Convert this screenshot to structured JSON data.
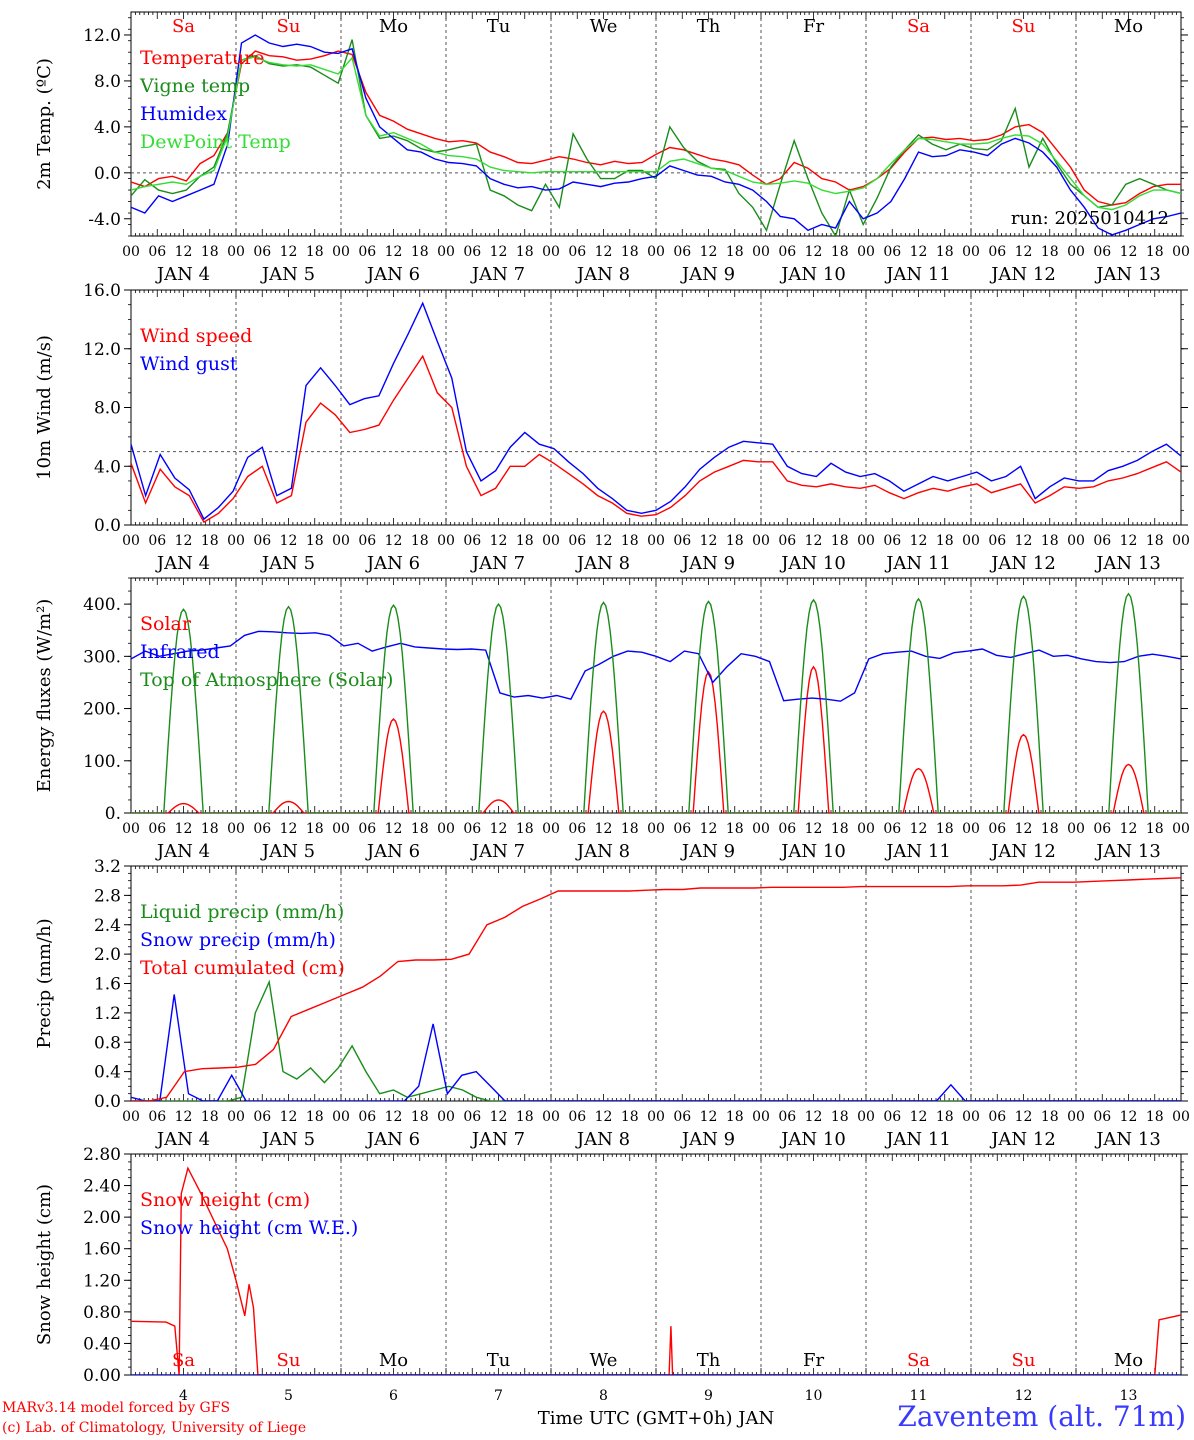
{
  "footer": {
    "model": "MARv3.14 model forced by GFS",
    "copyright": "(c) Lab. of Climatology, University of Liege",
    "station": "Zaventem (alt. 71m)"
  },
  "colors": {
    "red": "#ff0000",
    "green": "#1a8c1a",
    "blue": "#0000ff",
    "lime": "#33dd33",
    "weekend": "#ff0000",
    "weekday": "#000000"
  },
  "hour_ticks": [
    "00",
    "06",
    "12",
    "18"
  ],
  "days": [
    {
      "dow": "Sa",
      "date": "JAN  4",
      "num": "4",
      "weekend": true
    },
    {
      "dow": "Su",
      "date": "JAN  5",
      "num": "5",
      "weekend": true
    },
    {
      "dow": "Mo",
      "date": "JAN  6",
      "num": "6",
      "weekend": false
    },
    {
      "dow": "Tu",
      "date": "JAN  7",
      "num": "7",
      "weekend": false
    },
    {
      "dow": "We",
      "date": "JAN  8",
      "num": "8",
      "weekend": false
    },
    {
      "dow": "Th",
      "date": "JAN  9",
      "num": "9",
      "weekend": false
    },
    {
      "dow": "Fr",
      "date": "JAN 10",
      "num": "10",
      "weekend": false
    },
    {
      "dow": "Sa",
      "date": "JAN 11",
      "num": "11",
      "weekend": true
    },
    {
      "dow": "Su",
      "date": "JAN 12",
      "num": "12",
      "weekend": true
    },
    {
      "dow": "Mo",
      "date": "JAN 13",
      "num": "13",
      "weekend": false
    }
  ],
  "chart_data": [
    {
      "type": "line",
      "ylabel": "2m Temp. (ºC)",
      "ylim": [
        -5.5,
        14.0
      ],
      "yticks": [
        "-4.0",
        "0.0",
        "4.0",
        "8.0",
        "12.0"
      ],
      "ytick_values": [
        -4,
        0,
        4,
        8,
        12
      ],
      "ref_line": 0,
      "annotation": "run: 2025010412",
      "series": [
        {
          "name": "Temperature",
          "color": "red",
          "values": [
            -0.8,
            -1.2,
            -0.5,
            -0.3,
            -0.7,
            0.8,
            1.5,
            3.5,
            9.5,
            10.6,
            10.2,
            10.1,
            9.8,
            9.9,
            10.2,
            10.6,
            10.3,
            7.0,
            5.0,
            4.5,
            3.8,
            3.4,
            3.0,
            2.7,
            2.8,
            2.6,
            1.8,
            1.4,
            0.9,
            0.8,
            1.1,
            1.4,
            1.2,
            0.9,
            0.7,
            1.0,
            0.8,
            0.9,
            1.6,
            2.2,
            2.0,
            1.6,
            1.2,
            1.0,
            0.7,
            -0.2,
            -1.0,
            -0.5,
            0.9,
            0.4,
            -0.5,
            -0.8,
            -1.5,
            -1.2,
            -0.5,
            0.4,
            1.8,
            3.0,
            3.1,
            2.9,
            3.0,
            2.8,
            2.9,
            3.3,
            4.0,
            4.2,
            3.5,
            2.0,
            0.5,
            -1.5,
            -2.5,
            -2.8,
            -2.6,
            -1.8,
            -1.2,
            -1.0,
            -1.0
          ]
        },
        {
          "name": "Vigne temp",
          "color": "green",
          "values": [
            -2.0,
            -0.6,
            -1.5,
            -1.8,
            -1.5,
            -0.3,
            0.5,
            3.5,
            9.8,
            10.2,
            9.5,
            9.3,
            9.4,
            9.2,
            8.5,
            7.8,
            11.6,
            5.0,
            3.0,
            3.2,
            2.8,
            2.1,
            1.8,
            2.0,
            2.3,
            2.5,
            -1.5,
            -2.0,
            -2.8,
            -3.3,
            -1.0,
            -3.0,
            3.4,
            1.2,
            -0.5,
            -0.5,
            0.2,
            0.2,
            -0.5,
            4.0,
            2.2,
            1.0,
            0.4,
            0.3,
            -1.8,
            -3.0,
            -5.0,
            -1.0,
            2.8,
            -0.5,
            -3.5,
            -5.5,
            -1.5,
            -4.5,
            -2.2,
            0.5,
            2.0,
            3.3,
            2.5,
            2.0,
            2.5,
            2.1,
            2.0,
            2.8,
            5.6,
            0.5,
            3.0,
            0.8,
            -1.0,
            -2.0,
            -3.0,
            -2.8,
            -1.0,
            -0.5,
            -1.0,
            -1.5,
            -1.8
          ]
        },
        {
          "name": "Humidex",
          "color": "blue",
          "values": [
            -3.0,
            -3.5,
            -2.0,
            -2.5,
            -2.0,
            -1.5,
            -1.0,
            2.5,
            11.3,
            12.0,
            11.3,
            11.0,
            11.2,
            11.0,
            10.5,
            10.4,
            10.8,
            6.5,
            4.0,
            3.0,
            2.0,
            1.8,
            1.2,
            0.9,
            0.8,
            0.6,
            -0.5,
            -1.0,
            -1.3,
            -1.2,
            -1.5,
            -1.4,
            -0.8,
            -1.0,
            -1.2,
            -0.9,
            -0.8,
            -0.5,
            -0.3,
            0.6,
            0.2,
            -0.2,
            -0.3,
            -0.8,
            -1.0,
            -1.5,
            -2.5,
            -3.8,
            -4.0,
            -5.0,
            -4.5,
            -4.8,
            -2.5,
            -4.0,
            -3.5,
            -2.5,
            -0.5,
            1.8,
            1.4,
            1.5,
            2.0,
            1.8,
            1.5,
            2.5,
            3.0,
            2.6,
            1.8,
            0.5,
            -1.5,
            -3.0,
            -4.8,
            -5.4,
            -5.0,
            -4.5,
            -4.0,
            -3.8,
            -3.5
          ]
        },
        {
          "name": "DewPoint Temp",
          "color": "lime",
          "values": [
            -1.5,
            -1.2,
            -1.0,
            -0.8,
            -1.0,
            -0.3,
            0.2,
            3.2,
            9.8,
            10.1,
            9.6,
            9.4,
            9.3,
            9.4,
            9.0,
            8.6,
            10.0,
            5.0,
            3.2,
            3.5,
            3.0,
            2.5,
            1.8,
            1.5,
            1.4,
            1.2,
            0.5,
            0.2,
            0.1,
            0.0,
            0.1,
            0.1,
            0.1,
            0.1,
            0.1,
            0.1,
            0.1,
            0.1,
            0.1,
            1.0,
            1.2,
            0.8,
            0.4,
            0.2,
            -0.3,
            -0.8,
            -1.0,
            -0.9,
            -0.7,
            -0.9,
            -1.5,
            -1.8,
            -1.6,
            -1.3,
            -0.5,
            0.8,
            2.0,
            3.0,
            2.9,
            2.7,
            2.5,
            2.5,
            2.6,
            3.0,
            3.3,
            3.2,
            2.5,
            1.0,
            -0.5,
            -2.0,
            -3.0,
            -3.2,
            -2.8,
            -2.0,
            -1.5,
            -1.5,
            -1.8
          ]
        }
      ]
    },
    {
      "type": "line",
      "ylabel": "10m Wind (m/s)",
      "ylim": [
        0,
        16.0
      ],
      "yticks": [
        "0.0",
        "4.0",
        "8.0",
        "12.0",
        "16.0"
      ],
      "ytick_values": [
        0,
        4,
        8,
        12,
        16
      ],
      "ref_line": 5,
      "series": [
        {
          "name": "Wind speed",
          "color": "red",
          "values": [
            4.2,
            1.5,
            3.8,
            2.6,
            2.0,
            0.2,
            0.8,
            1.8,
            3.3,
            4.0,
            1.5,
            2.0,
            7.0,
            8.3,
            7.5,
            6.3,
            6.5,
            6.8,
            8.5,
            10.0,
            11.5,
            9.0,
            8.0,
            4.0,
            2.0,
            2.5,
            4.0,
            4.0,
            4.8,
            4.2,
            3.5,
            2.8,
            2.0,
            1.5,
            0.8,
            0.6,
            0.7,
            1.2,
            2.0,
            3.0,
            3.6,
            4.0,
            4.4,
            4.3,
            4.3,
            3.0,
            2.7,
            2.6,
            2.8,
            2.6,
            2.5,
            2.7,
            2.2,
            1.8,
            2.2,
            2.5,
            2.3,
            2.6,
            2.8,
            2.2,
            2.5,
            2.8,
            1.5,
            2.0,
            2.6,
            2.5,
            2.6,
            3.0,
            3.2,
            3.5,
            3.9,
            4.3,
            3.6
          ]
        },
        {
          "name": "Wind gust",
          "color": "blue",
          "values": [
            5.5,
            2.0,
            4.8,
            3.2,
            2.4,
            0.4,
            1.2,
            2.3,
            4.6,
            5.3,
            2.0,
            2.5,
            9.5,
            10.7,
            9.5,
            8.2,
            8.6,
            8.8,
            11.0,
            13.0,
            15.1,
            12.5,
            10.0,
            5.0,
            3.0,
            3.7,
            5.3,
            6.3,
            5.5,
            5.2,
            4.3,
            3.5,
            2.5,
            1.8,
            1.0,
            0.8,
            1.0,
            1.6,
            2.6,
            3.8,
            4.6,
            5.3,
            5.7,
            5.6,
            5.5,
            4.0,
            3.5,
            3.3,
            4.2,
            3.6,
            3.3,
            3.5,
            3.0,
            2.3,
            2.8,
            3.3,
            3.0,
            3.3,
            3.6,
            3.0,
            3.3,
            4.0,
            1.8,
            2.6,
            3.2,
            3.0,
            3.0,
            3.7,
            4.0,
            4.4,
            5.0,
            5.5,
            4.7
          ]
        }
      ]
    },
    {
      "type": "line",
      "ylabel": "Energy fluxes (W/m²)",
      "ylim": [
        0,
        450
      ],
      "yticks": [
        "0.",
        "100.",
        "200.",
        "300.",
        "400."
      ],
      "ytick_values": [
        0,
        100,
        200,
        300,
        400
      ],
      "series": [
        {
          "name": "Solar",
          "color": "red",
          "daily_peaks": [
            18,
            22,
            180,
            25,
            195,
            270,
            280,
            85,
            150,
            93
          ]
        },
        {
          "name": "Infrared",
          "color": "blue",
          "values": [
            295,
            310,
            300,
            305,
            310,
            312,
            316,
            320,
            340,
            348,
            347,
            345,
            344,
            345,
            340,
            320,
            325,
            310,
            318,
            325,
            318,
            316,
            314,
            313,
            314,
            312,
            230,
            222,
            225,
            220,
            225,
            218,
            272,
            285,
            300,
            310,
            308,
            300,
            290,
            310,
            305,
            250,
            280,
            305,
            300,
            290,
            215,
            218,
            220,
            218,
            214,
            230,
            295,
            305,
            308,
            310,
            300,
            296,
            307,
            310,
            314,
            302,
            298,
            305,
            312,
            300,
            302,
            295,
            290,
            288,
            290,
            300,
            304,
            300,
            295
          ]
        },
        {
          "name": "Top of Atmosphere (Solar)",
          "color": "green",
          "daily_peaks": [
            390,
            395,
            398,
            400,
            403,
            405,
            408,
            410,
            415,
            420
          ]
        }
      ]
    },
    {
      "type": "line",
      "ylabel": "Precip (mm/h)",
      "ylim": [
        0,
        3.2
      ],
      "yticks": [
        "0.0",
        "0.4",
        "0.8",
        "1.2",
        "1.6",
        "2.0",
        "2.4",
        "2.8",
        "3.2"
      ],
      "ytick_values": [
        0,
        0.4,
        0.8,
        1.2,
        1.6,
        2.0,
        2.4,
        2.8,
        3.2
      ],
      "series": [
        {
          "name": "Liquid precip (mm/h)",
          "color": "green",
          "values": [
            0,
            0,
            0,
            0,
            0,
            0,
            0,
            0,
            0.05,
            1.2,
            1.62,
            0.4,
            0.3,
            0.45,
            0.25,
            0.45,
            0.75,
            0.4,
            0.1,
            0.15,
            0.05,
            0.1,
            0.15,
            0.2,
            0.15,
            0.05,
            0,
            0,
            0,
            0,
            0,
            0,
            0,
            0,
            0,
            0,
            0,
            0,
            0,
            0,
            0,
            0,
            0,
            0,
            0,
            0,
            0,
            0,
            0,
            0,
            0,
            0,
            0,
            0,
            0,
            0,
            0,
            0,
            0,
            0,
            0,
            0,
            0,
            0,
            0,
            0,
            0,
            0,
            0,
            0,
            0,
            0,
            0,
            0,
            0,
            0,
            0
          ]
        },
        {
          "name": "Snow precip (mm/h)",
          "color": "blue",
          "values": [
            0.05,
            0,
            0,
            1.45,
            0.1,
            0,
            0,
            0.35,
            0,
            0,
            0,
            0,
            0,
            0,
            0,
            0,
            0,
            0,
            0,
            0,
            0.2,
            1.05,
            0.1,
            0.35,
            0.4,
            0.2,
            0,
            0,
            0,
            0,
            0,
            0,
            0,
            0,
            0,
            0,
            0,
            0,
            0,
            0,
            0,
            0,
            0,
            0,
            0,
            0,
            0,
            0,
            0,
            0,
            0,
            0,
            0,
            0,
            0,
            0,
            0,
            0.22,
            0,
            0,
            0,
            0,
            0,
            0,
            0,
            0,
            0,
            0,
            0,
            0,
            0,
            0,
            0,
            0
          ]
        },
        {
          "name": "Total cumulated (cm)",
          "color": "red",
          "values": [
            0,
            0,
            0.05,
            0.4,
            0.44,
            0.45,
            0.46,
            0.5,
            0.7,
            1.15,
            1.25,
            1.35,
            1.45,
            1.55,
            1.7,
            1.9,
            1.92,
            1.92,
            1.93,
            2.0,
            2.4,
            2.5,
            2.65,
            2.75,
            2.86,
            2.86,
            2.86,
            2.86,
            2.86,
            2.87,
            2.88,
            2.88,
            2.9,
            2.9,
            2.9,
            2.9,
            2.91,
            2.91,
            2.91,
            2.91,
            2.91,
            2.92,
            2.92,
            2.92,
            2.92,
            2.92,
            2.92,
            2.93,
            2.93,
            2.93,
            2.94,
            2.98,
            2.98,
            2.98,
            2.99,
            3.0,
            3.01,
            3.02,
            3.03,
            3.04
          ]
        }
      ]
    },
    {
      "type": "line",
      "ylabel": "Snow height (cm)",
      "ylim": [
        0,
        2.8
      ],
      "yticks": [
        "0.00",
        "0.40",
        "0.80",
        "1.20",
        "1.60",
        "2.00",
        "2.40",
        "2.80"
      ],
      "ytick_values": [
        0,
        0.4,
        0.8,
        1.2,
        1.6,
        2.0,
        2.4,
        2.8
      ],
      "xlabel": "Time UTC (GMT+0h) JAN",
      "series": [
        {
          "name": "Snow height (cm)",
          "color": "red",
          "points": [
            [
              0,
              0.68
            ],
            [
              8,
              0.67
            ],
            [
              10,
              0.62
            ],
            [
              11,
              0
            ],
            [
              11.5,
              2.3
            ],
            [
              13,
              2.62
            ],
            [
              16,
              2.3
            ],
            [
              22,
              1.6
            ],
            [
              24,
              1.2
            ],
            [
              26,
              0.75
            ],
            [
              27,
              1.15
            ],
            [
              28,
              0.85
            ],
            [
              29,
              0
            ],
            [
              123,
              0
            ],
            [
              123.4,
              0.62
            ],
            [
              123.8,
              0
            ],
            [
              234,
              0
            ],
            [
              235,
              0.7
            ],
            [
              240,
              0.76
            ],
            [
              244,
              0.65
            ],
            [
              246,
              0
            ]
          ]
        },
        {
          "name": "Snow height (cm W.E.)",
          "color": "blue",
          "points": [
            [
              0,
              0
            ],
            [
              246,
              0
            ]
          ]
        }
      ]
    }
  ]
}
